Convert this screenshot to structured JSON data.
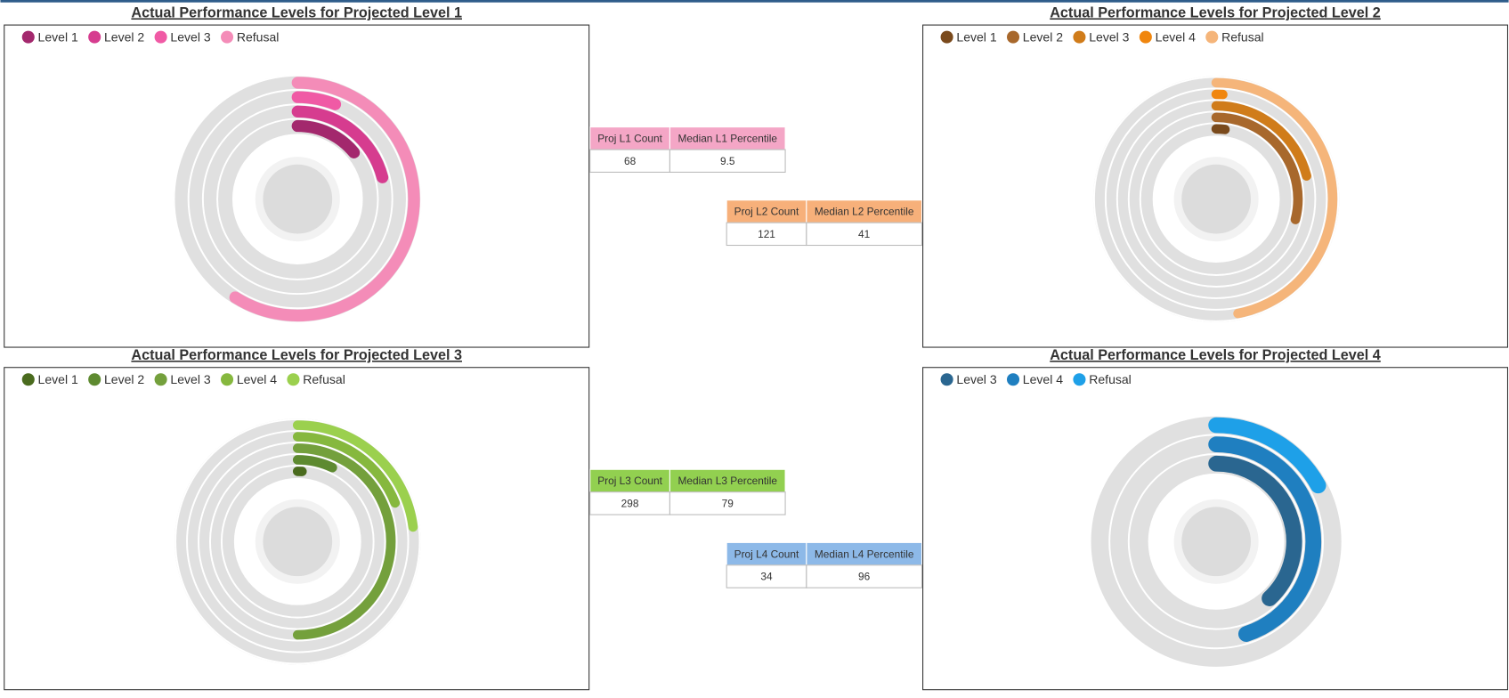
{
  "chart_data": [
    {
      "type": "radial_bar",
      "title": "Actual Performance Levels for Projected Level 1",
      "categories": [
        "Level 1",
        "Level 2",
        "Level 3",
        "Refusal"
      ],
      "values": [
        14,
        21,
        6,
        59
      ],
      "colors": [
        "#a3286d",
        "#d63c8f",
        "#f05aa5",
        "#f48cb8"
      ],
      "ylim": [
        0,
        100
      ]
    },
    {
      "type": "radial_bar",
      "title": "Actual Performance Levels for Projected Level 2",
      "categories": [
        "Level 1",
        "Level 2",
        "Level 3",
        "Level 4",
        "Refusal"
      ],
      "values": [
        2,
        29,
        21,
        1,
        47
      ],
      "colors": [
        "#7a4a1c",
        "#a8682c",
        "#d07c1a",
        "#f0860e",
        "#f5b57a"
      ],
      "ylim": [
        0,
        100
      ]
    },
    {
      "type": "radial_bar",
      "title": "Actual Performance Levels for Projected Level 3",
      "categories": [
        "Level 1",
        "Level 2",
        "Level 3",
        "Level 4",
        "Refusal"
      ],
      "values": [
        1,
        7,
        50,
        19,
        23
      ],
      "colors": [
        "#4a6b1e",
        "#5e8a30",
        "#74a03c",
        "#86b83e",
        "#9bd04e"
      ],
      "ylim": [
        0,
        100
      ]
    },
    {
      "type": "radial_bar",
      "title": "Actual Performance Levels for Projected Level 4",
      "categories": [
        "Level 3",
        "Level 4",
        "Refusal"
      ],
      "values": [
        38,
        45,
        17
      ],
      "colors": [
        "#2a6690",
        "#1f7fc0",
        "#1ea0e8"
      ],
      "ylim": [
        0,
        100
      ]
    }
  ],
  "tables": [
    {
      "columns": [
        "Proj L1 Count",
        "Median L1 Percentile"
      ],
      "rows": [
        [
          68,
          9.5
        ]
      ],
      "color": "#f4a6c6"
    },
    {
      "columns": [
        "Proj L2 Count",
        "Median L2 Percentile"
      ],
      "rows": [
        [
          121,
          41
        ]
      ],
      "color": "#f7b07a"
    },
    {
      "columns": [
        "Proj L3 Count",
        "Median L3 Percentile"
      ],
      "rows": [
        [
          298,
          79
        ]
      ],
      "color": "#92d050"
    },
    {
      "columns": [
        "Proj L4 Count",
        "Median L4 Percentile"
      ],
      "rows": [
        [
          34,
          96
        ]
      ],
      "color": "#8db9e8"
    }
  ]
}
